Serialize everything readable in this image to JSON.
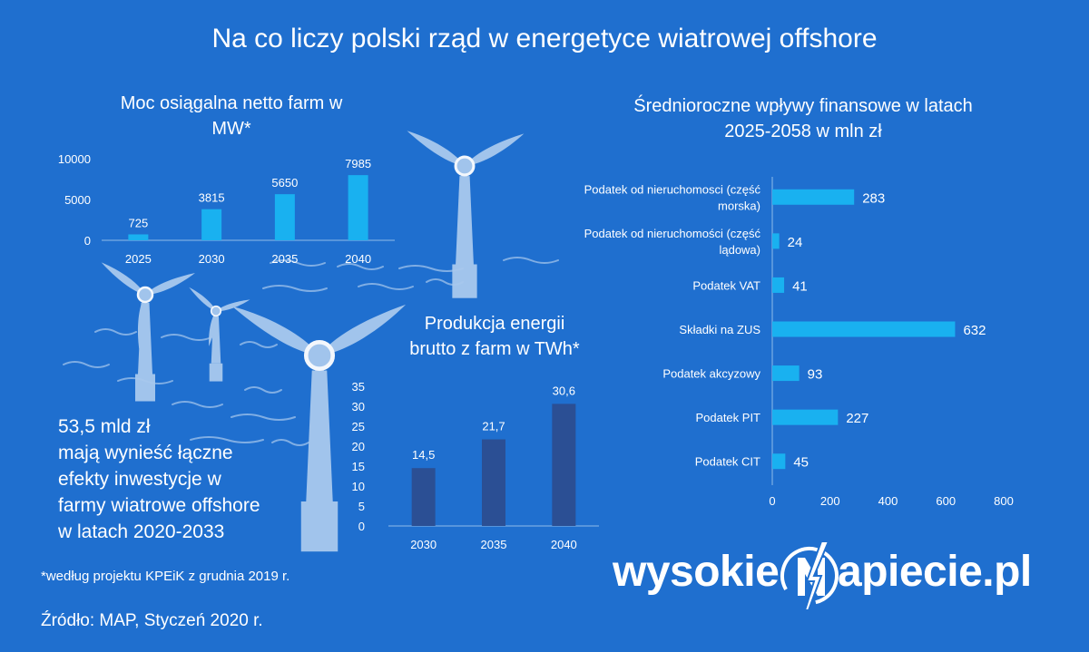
{
  "title": "Na co liczy polski rząd w energetyce wiatrowej offshore",
  "info_lines": [
    "53,5 mld zł",
    "mają wynieść łączne",
    "efekty inwestycje w",
    "farmy wiatrowe offshore",
    "w latach 2020-2033"
  ],
  "footnote": "*według projektu KPEiK z grudnia 2019 r.",
  "source": "Źródło: MAP, Styczeń 2020 r.",
  "logo": {
    "left": "wysokie",
    "right": "apiecie.pl",
    "icon": "lightning-n-icon"
  },
  "colors": {
    "background": "#1f6fcf",
    "bar_light": "#19b1f0",
    "bar_dark": "#2b4f94",
    "turbine": "#a9c9ee"
  },
  "chart_data": [
    {
      "type": "bar",
      "title": "Moc osiągalna netto farm w MW*",
      "title_lines": [
        "Moc osiągalna netto farm w",
        "MW*"
      ],
      "categories": [
        "2025",
        "2030",
        "2035",
        "2040"
      ],
      "values": [
        725,
        3815,
        5650,
        7985
      ],
      "value_labels": [
        "725",
        "3815",
        "5650",
        "7985"
      ],
      "yticks": [
        "0",
        "5000",
        "10000"
      ],
      "ylim": [
        0,
        10000
      ],
      "grid": false
    },
    {
      "type": "bar",
      "title": "Produkcja energii brutto z farm w TWh*",
      "title_lines": [
        "Produkcja energii",
        "brutto z farm w TWh*"
      ],
      "categories": [
        "2030",
        "2035",
        "2040"
      ],
      "values": [
        14.5,
        21.7,
        30.6
      ],
      "value_labels": [
        "14,5",
        "21,7",
        "30,6"
      ],
      "yticks": [
        "0",
        "5",
        "10",
        "15",
        "20",
        "25",
        "30",
        "35"
      ],
      "ylim": [
        0,
        35
      ],
      "grid": false
    },
    {
      "type": "bar",
      "orientation": "horizontal",
      "title": "Średnioroczne wpływy finansowe w latach 2025-2058 w mln zł",
      "title_lines": [
        "Średnioroczne wpływy finansowe w latach",
        "2025-2058 w mln zł"
      ],
      "categories": [
        [
          "Podatek od nieruchomosci (część",
          "morska)"
        ],
        [
          "Podatek od nieruchomości (część",
          "lądowa)"
        ],
        [
          "Podatek VAT"
        ],
        [
          "Składki na ZUS"
        ],
        [
          "Podatek akcyzowy"
        ],
        [
          "Podatek PIT"
        ],
        [
          "Podatek CIT"
        ]
      ],
      "values": [
        283,
        24,
        41,
        632,
        93,
        227,
        45
      ],
      "value_labels": [
        "283",
        "24",
        "41",
        "632",
        "93",
        "227",
        "45"
      ],
      "xticks": [
        "0",
        "200",
        "400",
        "600",
        "800"
      ],
      "xlim": [
        0,
        800
      ],
      "grid": false
    }
  ]
}
